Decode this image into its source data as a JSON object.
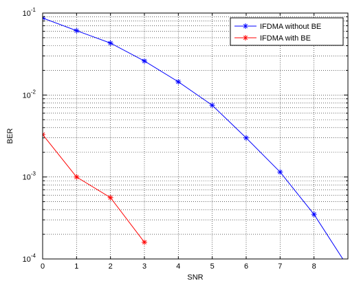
{
  "chart_data": {
    "type": "line",
    "xlabel": "SNR",
    "ylabel": "BER",
    "xlim": [
      0,
      9
    ],
    "ylim": [
      0.0001,
      0.1
    ],
    "y_scale": "log",
    "x_ticks": [
      "0",
      "1",
      "2",
      "3",
      "4",
      "5",
      "6",
      "7",
      "8"
    ],
    "y_ticks": [
      {
        "base": "10",
        "exp": "-1",
        "value": 0.1
      },
      {
        "base": "10",
        "exp": "-2",
        "value": 0.01
      },
      {
        "base": "10",
        "exp": "-3",
        "value": 0.001
      },
      {
        "base": "10",
        "exp": "-4",
        "value": 0.0001
      }
    ],
    "grid": true,
    "legend_position": "top-right",
    "series": [
      {
        "name": "IFDMA without BE",
        "color": "#0000ff",
        "marker": "asterisk",
        "x": [
          0,
          1,
          2,
          3,
          4,
          5,
          6,
          7,
          8,
          9
        ],
        "y": [
          0.087,
          0.061,
          0.043,
          0.026,
          0.0145,
          0.0075,
          0.003,
          0.00115,
          0.00035,
          8e-05
        ]
      },
      {
        "name": "IFDMA with BE",
        "color": "#ff0000",
        "marker": "asterisk",
        "x": [
          0,
          1,
          2,
          3
        ],
        "y": [
          0.0033,
          0.001,
          0.00056,
          0.00016
        ]
      }
    ]
  }
}
